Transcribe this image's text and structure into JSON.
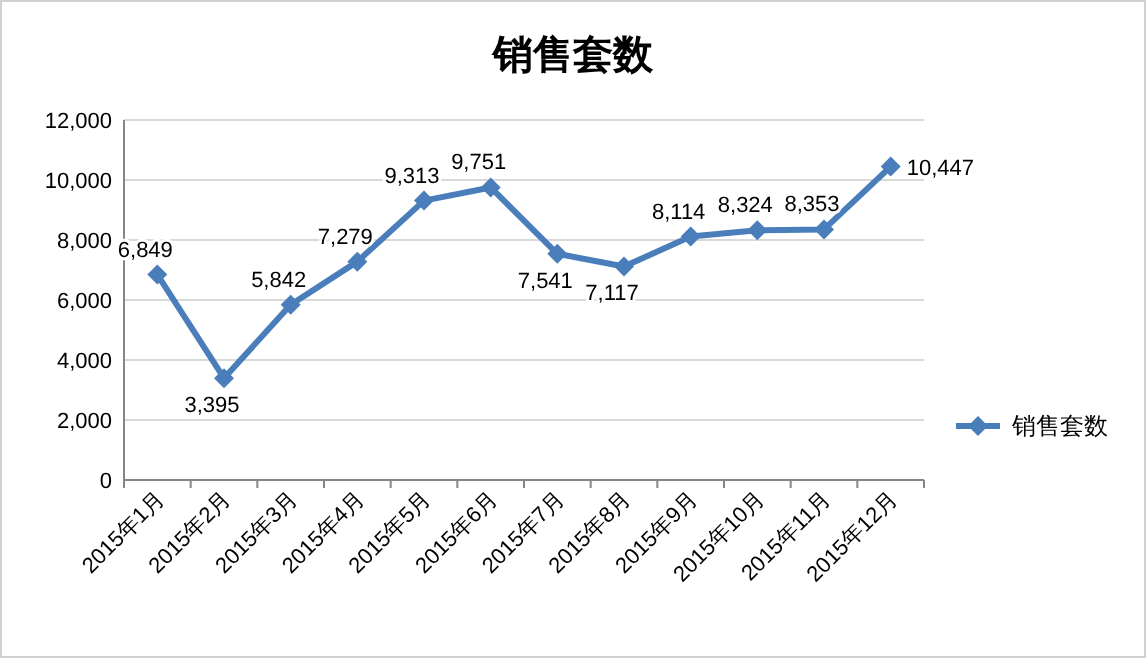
{
  "chart_data": {
    "type": "line",
    "title": "销售套数",
    "categories": [
      "2015年1月",
      "2015年2月",
      "2015年3月",
      "2015年4月",
      "2015年5月",
      "2015年6月",
      "2015年7月",
      "2015年8月",
      "2015年9月",
      "2015年10月",
      "2015年11月",
      "2015年12月"
    ],
    "series": [
      {
        "name": "销售套数",
        "color": "#4a7ebb",
        "values": [
          6849,
          3395,
          5842,
          7279,
          9313,
          9751,
          7541,
          7117,
          8114,
          8324,
          8353,
          10447
        ]
      }
    ],
    "ylim": [
      0,
      12000
    ],
    "yticks": [
      {
        "value": 0,
        "label": "0"
      },
      {
        "value": 2000,
        "label": "2,000"
      },
      {
        "value": 4000,
        "label": "4,000"
      },
      {
        "value": 6000,
        "label": "6,000"
      },
      {
        "value": 8000,
        "label": "8,000"
      },
      {
        "value": 10000,
        "label": "10,000"
      },
      {
        "value": 12000,
        "label": "12,000"
      }
    ],
    "value_labels": [
      "6,849",
      "3,395",
      "5,842",
      "7,279",
      "9,313",
      "9,751",
      "7,541",
      "7,117",
      "8,114",
      "8,324",
      "8,353",
      "10,447"
    ],
    "grid": "y",
    "legend": "right",
    "marker": "diamond",
    "line_style": "solid"
  }
}
